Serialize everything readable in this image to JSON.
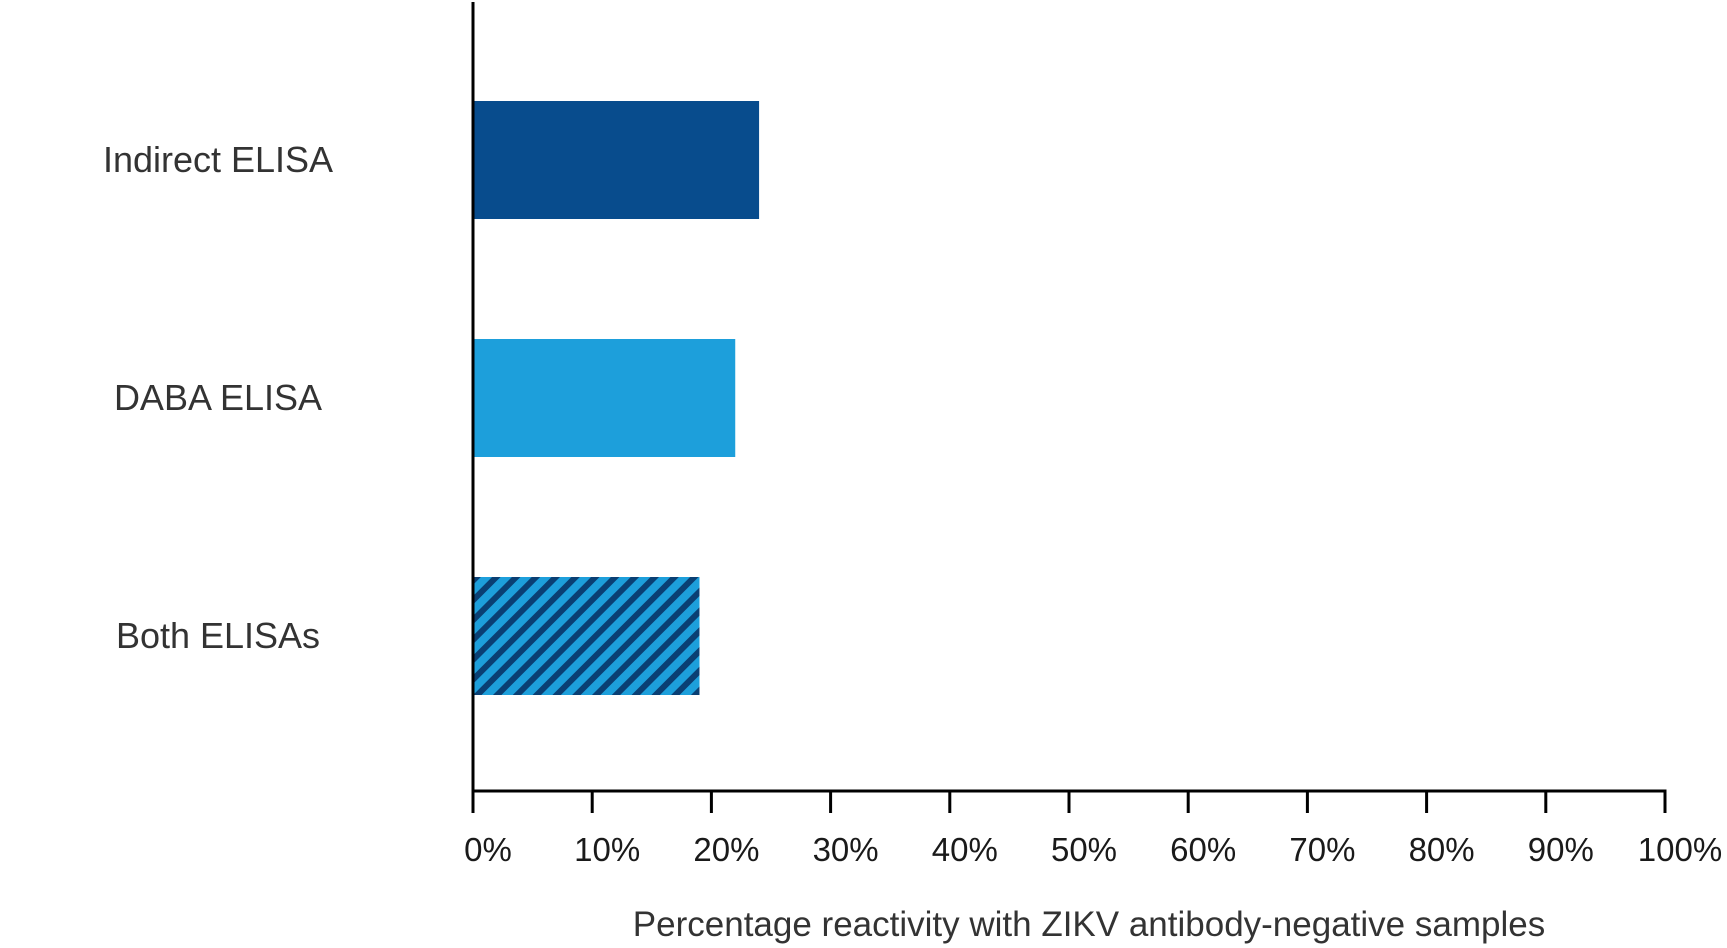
{
  "chart_data": {
    "type": "bar",
    "orientation": "horizontal",
    "categories": [
      "Indirect ELISA",
      "DABA ELISA",
      "Both ELISAs"
    ],
    "values": [
      24,
      22,
      19
    ],
    "value_unit": "%",
    "bar_styles": [
      "solid",
      "solid",
      "hatched"
    ],
    "colors": [
      "#084c8d",
      "#1d9fdb",
      "#1d9fdb"
    ],
    "hatch_color": "#0a3f73",
    "title": "",
    "xlabel": "Percentage reactivity with ZIKV antibody-negative samples",
    "ylabel": "",
    "xlim": [
      0,
      100
    ],
    "x_ticks": [
      0,
      10,
      20,
      30,
      40,
      50,
      60,
      70,
      80,
      90,
      100
    ],
    "x_tick_labels": [
      "0%",
      "10%",
      "20%",
      "30%",
      "40%",
      "50%",
      "60%",
      "70%",
      "80%",
      "90%",
      "100%"
    ],
    "grid": false,
    "legend": "none"
  }
}
